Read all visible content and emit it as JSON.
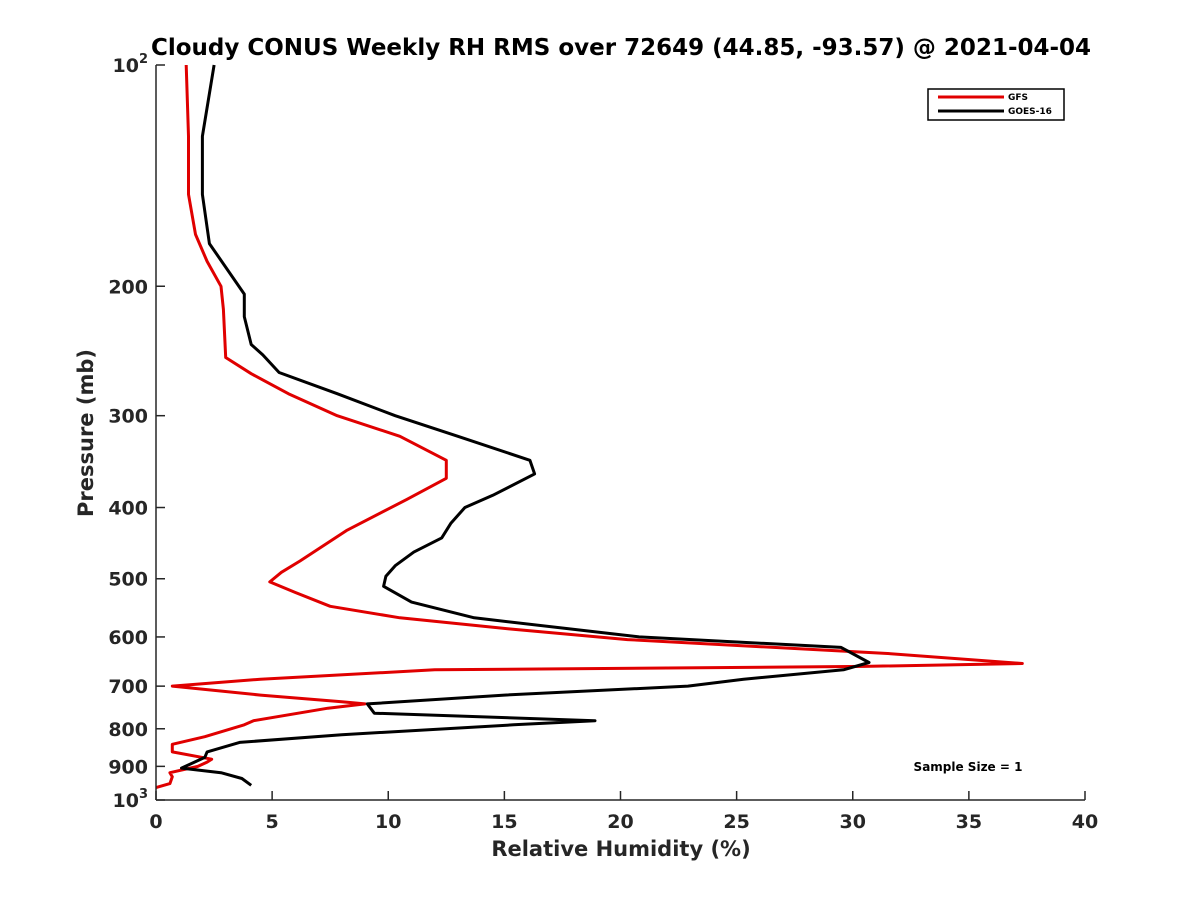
{
  "chart_data": {
    "type": "line",
    "title": "Cloudy CONUS Weekly RH RMS over 72649 (44.85, -93.57) @ 2021-04-04",
    "xlabel": "Relative Humidity (%)",
    "ylabel": "Pressure (mb)",
    "xlim": [
      0,
      40
    ],
    "ylim": [
      100,
      1000
    ],
    "yscale": "log",
    "y_reversed": true,
    "x_ticks": [
      "0",
      "5",
      "10",
      "15",
      "20",
      "25",
      "30",
      "35",
      "40"
    ],
    "y_ticks": [
      {
        "value": 100,
        "label": "10",
        "exponent": "2"
      },
      {
        "value": 200,
        "label": "200"
      },
      {
        "value": 300,
        "label": "300"
      },
      {
        "value": 400,
        "label": "400"
      },
      {
        "value": 500,
        "label": "500"
      },
      {
        "value": 600,
        "label": "600"
      },
      {
        "value": 700,
        "label": "700"
      },
      {
        "value": 800,
        "label": "800"
      },
      {
        "value": 900,
        "label": "900"
      },
      {
        "value": 1000,
        "label": "10",
        "exponent": "3"
      }
    ],
    "grid": false,
    "legend_position": "top-right",
    "annotation": "Sample Size = 1",
    "series": [
      {
        "name": "GFS",
        "color": "#e00000",
        "points": [
          [
            1.3,
            100
          ],
          [
            1.4,
            125
          ],
          [
            1.4,
            150
          ],
          [
            1.7,
            170
          ],
          [
            2.2,
            185
          ],
          [
            2.8,
            200
          ],
          [
            2.9,
            215
          ],
          [
            3.0,
            250
          ],
          [
            4.1,
            263
          ],
          [
            5.7,
            280
          ],
          [
            7.8,
            300
          ],
          [
            10.5,
            320
          ],
          [
            12.5,
            345
          ],
          [
            12.5,
            365
          ],
          [
            10.8,
            390
          ],
          [
            8.2,
            430
          ],
          [
            6.2,
            473
          ],
          [
            5.4,
            490
          ],
          [
            4.9,
            505
          ],
          [
            6.0,
            522
          ],
          [
            7.5,
            545
          ],
          [
            10.5,
            565
          ],
          [
            15.2,
            585
          ],
          [
            20.3,
            605
          ],
          [
            31.5,
            632
          ],
          [
            37.3,
            652
          ],
          [
            30.5,
            658
          ],
          [
            12.0,
            665
          ],
          [
            4.5,
            685
          ],
          [
            0.7,
            700
          ],
          [
            4.5,
            720
          ],
          [
            8.0,
            735
          ],
          [
            9.0,
            740
          ],
          [
            7.4,
            750
          ],
          [
            4.2,
            780
          ],
          [
            3.8,
            790
          ],
          [
            2.1,
            820
          ],
          [
            0.7,
            840
          ],
          [
            0.7,
            860
          ],
          [
            2.4,
            880
          ],
          [
            2.2,
            888
          ],
          [
            1.8,
            900
          ],
          [
            0.6,
            918
          ],
          [
            0.7,
            930
          ],
          [
            0.6,
            950
          ],
          [
            0.0,
            962
          ]
        ]
      },
      {
        "name": "GOES-16",
        "color": "#000000",
        "points": [
          [
            2.5,
            100
          ],
          [
            2.0,
            125
          ],
          [
            2.0,
            150
          ],
          [
            2.3,
            175
          ],
          [
            3.8,
            205
          ],
          [
            3.8,
            220
          ],
          [
            4.1,
            240
          ],
          [
            4.6,
            248
          ],
          [
            5.3,
            262
          ],
          [
            7.8,
            280
          ],
          [
            10.3,
            300
          ],
          [
            13.0,
            320
          ],
          [
            16.1,
            345
          ],
          [
            16.3,
            360
          ],
          [
            14.5,
            385
          ],
          [
            13.3,
            400
          ],
          [
            12.7,
            420
          ],
          [
            12.3,
            440
          ],
          [
            11.1,
            460
          ],
          [
            10.3,
            480
          ],
          [
            9.9,
            496
          ],
          [
            9.8,
            512
          ],
          [
            11.0,
            538
          ],
          [
            13.7,
            565
          ],
          [
            20.8,
            600
          ],
          [
            29.5,
            620
          ],
          [
            30.7,
            650
          ],
          [
            29.6,
            665
          ],
          [
            25.3,
            685
          ],
          [
            22.9,
            700
          ],
          [
            15.0,
            720
          ],
          [
            9.1,
            740
          ],
          [
            9.4,
            762
          ],
          [
            18.9,
            780
          ],
          [
            15.4,
            790
          ],
          [
            8.0,
            815
          ],
          [
            3.6,
            835
          ],
          [
            2.2,
            860
          ],
          [
            2.1,
            875
          ],
          [
            1.1,
            905
          ],
          [
            2.8,
            918
          ],
          [
            3.7,
            935
          ],
          [
            4.1,
            955
          ]
        ]
      }
    ]
  }
}
